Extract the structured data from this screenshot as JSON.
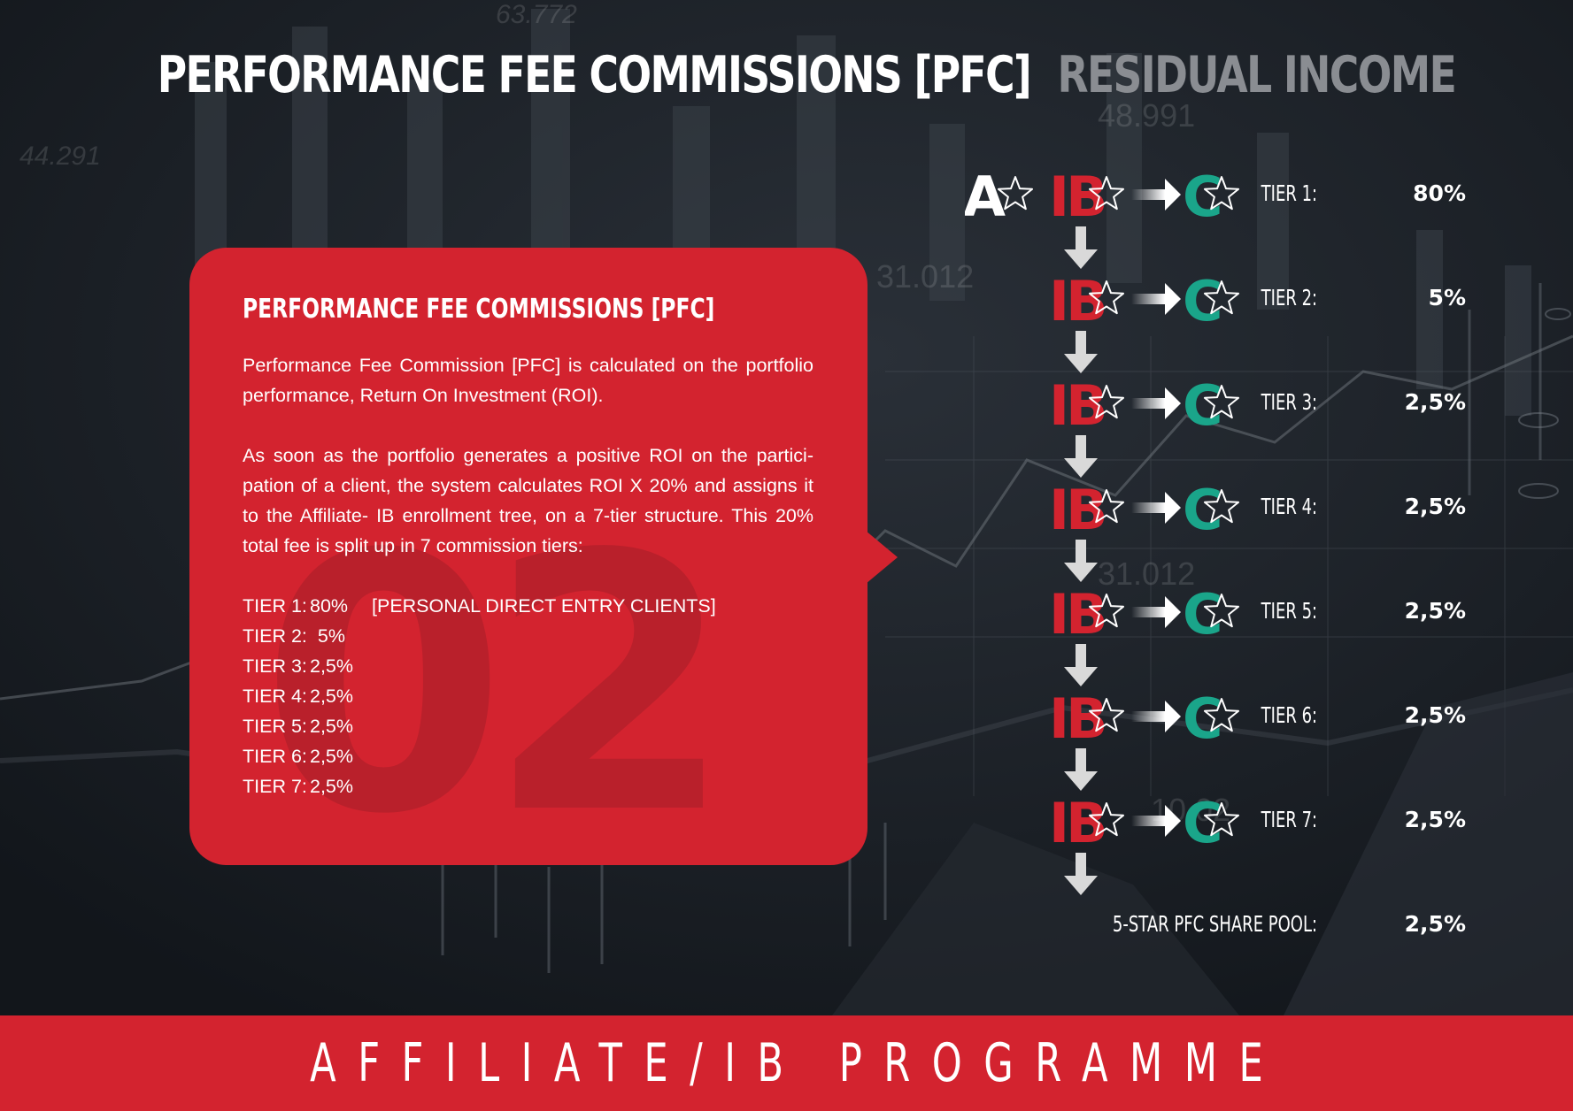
{
  "header": {
    "title_primary": "PERFORMANCE FEE COMMISSIONS [PFC]",
    "title_secondary": "RESIDUAL INCOME"
  },
  "background_numbers": [
    "63.772",
    "44.291",
    "48.991",
    "31.012",
    "31.012",
    "10.02"
  ],
  "card": {
    "heading": "PERFORMANCE FEE COMMISSIONS [PFC]",
    "paragraph_1": "Performance Fee Commission [PFC] is calculated on the portfolio performance, Return On Investment (ROI).",
    "paragraph_2": "As soon as the portfolio generates a positive ROI on the partici-pation of a client, the system calculates ROI X 20% and assigns it to the Affiliate- IB enrollment tree, on a 7-tier structure. This 20% total fee is split up in 7 commission tiers:",
    "big_number": "02",
    "tiers": [
      {
        "label": "TIER 1:",
        "value": "80%",
        "note": "[PERSONAL DIRECT ENTRY CLIENTS]"
      },
      {
        "label": "TIER 2:",
        "value": "5%",
        "note": ""
      },
      {
        "label": "TIER 3:",
        "value": "2,5%",
        "note": ""
      },
      {
        "label": "TIER 4:",
        "value": "2,5%",
        "note": ""
      },
      {
        "label": "TIER 5:",
        "value": "2,5%",
        "note": ""
      },
      {
        "label": "TIER 6:",
        "value": "2,5%",
        "note": ""
      },
      {
        "label": "TIER 7:",
        "value": "2,5%",
        "note": ""
      }
    ]
  },
  "flow": {
    "affiliate_letter": "A",
    "ib_text": "IB",
    "client_letter": "C",
    "tiers": [
      {
        "label": "TIER 1:",
        "value": "80%"
      },
      {
        "label": "TIER 2:",
        "value": "5%"
      },
      {
        "label": "TIER 3:",
        "value": "2,5%"
      },
      {
        "label": "TIER 4:",
        "value": "2,5%"
      },
      {
        "label": "TIER 5:",
        "value": "2,5%"
      },
      {
        "label": "TIER 6:",
        "value": "2,5%"
      },
      {
        "label": "TIER 7:",
        "value": "2,5%"
      }
    ],
    "pool": {
      "label": "5-STAR PFC SHARE POOL:",
      "value": "2,5%"
    }
  },
  "footer": {
    "text": "AFFILIATE/IB PROGRAMME"
  },
  "colors": {
    "accent_red": "#d3232f",
    "client_green": "#1aa58a",
    "background": "#14181e",
    "secondary_grey": "#8a8d92"
  }
}
